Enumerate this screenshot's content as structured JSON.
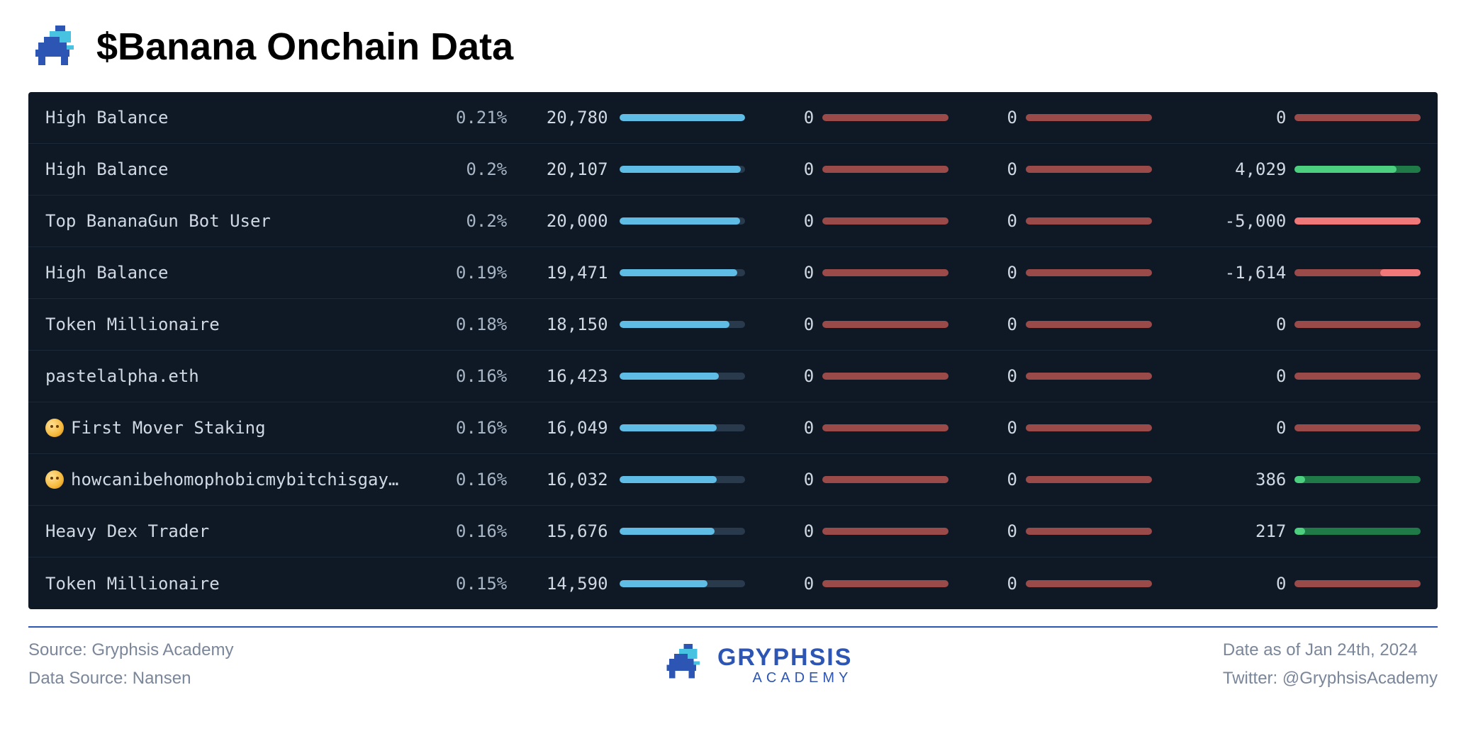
{
  "title": "$Banana Onchain Data",
  "colors": {
    "bgPanel": "#0f1925",
    "rowBorder": "#1a2838",
    "barTrack": "#2a3a4d",
    "barBlue": "#5fbde5",
    "barRed": "#9b4a4a",
    "barGreenBright": "#4cd080",
    "barGreenDark": "#1f7a48",
    "barRedBright": "#f07878",
    "text": "#cfd8e3",
    "textMuted": "#a8b5c5",
    "hr": "#2d55b4",
    "footerText": "#7a8699",
    "brand": "#2d55b4"
  },
  "bars": {
    "blueMax": 20780,
    "changeMax": 5000
  },
  "rows": [
    {
      "label": "High Balance",
      "emoji": false,
      "pct": "0.21%",
      "amount": "20,780",
      "amountNum": 20780,
      "z1": "0",
      "z2": "0",
      "change": "0",
      "changeNum": 0
    },
    {
      "label": "High Balance",
      "emoji": false,
      "pct": "0.2%",
      "amount": "20,107",
      "amountNum": 20107,
      "z1": "0",
      "z2": "0",
      "change": "4,029",
      "changeNum": 4029
    },
    {
      "label": "Top BananaGun Bot User",
      "emoji": false,
      "pct": "0.2%",
      "amount": "20,000",
      "amountNum": 20000,
      "z1": "0",
      "z2": "0",
      "change": "-5,000",
      "changeNum": -5000
    },
    {
      "label": "High Balance",
      "emoji": false,
      "pct": "0.19%",
      "amount": "19,471",
      "amountNum": 19471,
      "z1": "0",
      "z2": "0",
      "change": "-1,614",
      "changeNum": -1614
    },
    {
      "label": "Token Millionaire",
      "emoji": false,
      "pct": "0.18%",
      "amount": "18,150",
      "amountNum": 18150,
      "z1": "0",
      "z2": "0",
      "change": "0",
      "changeNum": 0
    },
    {
      "label": "pastelalpha.eth",
      "emoji": false,
      "pct": "0.16%",
      "amount": "16,423",
      "amountNum": 16423,
      "z1": "0",
      "z2": "0",
      "change": "0",
      "changeNum": 0
    },
    {
      "label": "First Mover Staking",
      "emoji": true,
      "pct": "0.16%",
      "amount": "16,049",
      "amountNum": 16049,
      "z1": "0",
      "z2": "0",
      "change": "0",
      "changeNum": 0
    },
    {
      "label": "howcanibehomophobicmybitchisgay…",
      "emoji": true,
      "pct": "0.16%",
      "amount": "16,032",
      "amountNum": 16032,
      "z1": "0",
      "z2": "0",
      "change": "386",
      "changeNum": 386
    },
    {
      "label": "Heavy Dex Trader",
      "emoji": false,
      "pct": "0.16%",
      "amount": "15,676",
      "amountNum": 15676,
      "z1": "0",
      "z2": "0",
      "change": "217",
      "changeNum": 217
    },
    {
      "label": "Token Millionaire",
      "emoji": false,
      "pct": "0.15%",
      "amount": "14,590",
      "amountNum": 14590,
      "z1": "0",
      "z2": "0",
      "change": "0",
      "changeNum": 0
    }
  ],
  "footer": {
    "sourceLabel": "Source: Gryphsis Academy",
    "dataSourceLabel": "Data Source: Nansen",
    "brandMain": "GRYPHSIS",
    "brandSub": "ACADEMY",
    "dateLabel": "Date as of Jan 24th, 2024",
    "twitterLabel": "Twitter: @GryphsisAcademy"
  }
}
